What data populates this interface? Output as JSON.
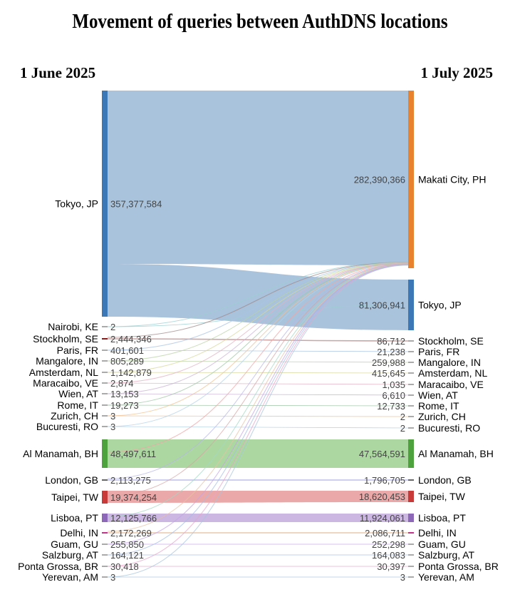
{
  "title": "Movement of queries between AuthDNS locations",
  "left_date": "1 June 2025",
  "right_date": "1 July 2025",
  "colors": {
    "tokyo": "#3b78b5",
    "makati": "#e8822e",
    "manama": "#4ea23d",
    "taipei": "#c8393a",
    "lisboa": "#8e68b8",
    "small": "#555555"
  },
  "chart_data": {
    "type": "sankey",
    "left_nodes": [
      {
        "label": "Tokyo, JP",
        "value": "357,377,584"
      },
      {
        "label": "Nairobi, KE",
        "value": "2"
      },
      {
        "label": "Stockholm, SE",
        "value": "2,444,346"
      },
      {
        "label": "Paris, FR",
        "value": "401,601"
      },
      {
        "label": "Mangalore, IN",
        "value": "805,289"
      },
      {
        "label": "Amsterdam, NL",
        "value": "1,142,879"
      },
      {
        "label": "Maracaibo, VE",
        "value": "2,874"
      },
      {
        "label": "Wien, AT",
        "value": "13,153"
      },
      {
        "label": "Rome, IT",
        "value": "19,273"
      },
      {
        "label": "Zurich, CH",
        "value": "3"
      },
      {
        "label": "Bucuresti, RO",
        "value": "3"
      },
      {
        "label": "Al Manamah, BH",
        "value": "48,497,611"
      },
      {
        "label": "London, GB",
        "value": "2,113,275"
      },
      {
        "label": "Taipei, TW",
        "value": "19,374,254"
      },
      {
        "label": "Lisboa, PT",
        "value": "12,125,766"
      },
      {
        "label": "Delhi, IN",
        "value": "2,172,269"
      },
      {
        "label": "Guam, GU",
        "value": "255,850"
      },
      {
        "label": "Salzburg, AT",
        "value": "164,121"
      },
      {
        "label": "Ponta Grossa, BR",
        "value": "30,418"
      },
      {
        "label": "Yerevan, AM",
        "value": "3"
      }
    ],
    "right_nodes": [
      {
        "label": "Makati City, PH",
        "value": "282,390,366"
      },
      {
        "label": "Tokyo, JP",
        "value": "81,306,941"
      },
      {
        "label": "Stockholm, SE",
        "value": "86,712"
      },
      {
        "label": "Paris, FR",
        "value": "21,238"
      },
      {
        "label": "Mangalore, IN",
        "value": "259,988"
      },
      {
        "label": "Amsterdam, NL",
        "value": "415,645"
      },
      {
        "label": "Maracaibo, VE",
        "value": "1,035"
      },
      {
        "label": "Wien, AT",
        "value": "6,610"
      },
      {
        "label": "Rome, IT",
        "value": "12,733"
      },
      {
        "label": "Zurich, CH",
        "value": "2"
      },
      {
        "label": "Bucuresti, RO",
        "value": "2"
      },
      {
        "label": "Al Manamah, BH",
        "value": "47,564,591"
      },
      {
        "label": "London, GB",
        "value": "1,796,705"
      },
      {
        "label": "Taipei, TW",
        "value": "18,620,453"
      },
      {
        "label": "Lisboa, PT",
        "value": "11,924,061"
      },
      {
        "label": "Delhi, IN",
        "value": "2,086,711"
      },
      {
        "label": "Guam, GU",
        "value": "252,298"
      },
      {
        "label": "Salzburg, AT",
        "value": "164,083"
      },
      {
        "label": "Ponta Grossa, BR",
        "value": "30,397"
      },
      {
        "label": "Yerevan, AM",
        "value": "3"
      }
    ]
  }
}
